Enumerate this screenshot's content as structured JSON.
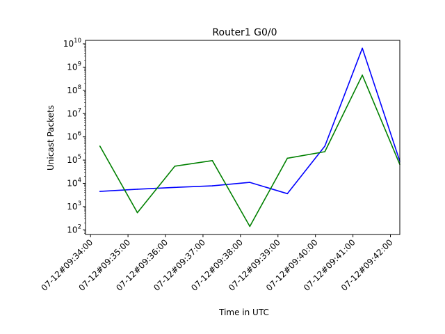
{
  "chart_data": {
    "type": "line",
    "title": "Router1 G0/0",
    "xlabel": "Time in UTC",
    "ylabel": "Unicast Packets",
    "yscale": "log",
    "ylim_exp": [
      1.8,
      10.15
    ],
    "y_ticks": [
      {
        "base": "10",
        "exp": "2",
        "value": 100
      },
      {
        "base": "10",
        "exp": "3",
        "value": 1000
      },
      {
        "base": "10",
        "exp": "4",
        "value": 10000
      },
      {
        "base": "10",
        "exp": "5",
        "value": 100000
      },
      {
        "base": "10",
        "exp": "6",
        "value": 1000000
      },
      {
        "base": "10",
        "exp": "7",
        "value": 10000000
      },
      {
        "base": "10",
        "exp": "8",
        "value": 100000000
      },
      {
        "base": "10",
        "exp": "9",
        "value": 1000000000
      },
      {
        "base": "10",
        "exp": "10",
        "value": 10000000000
      }
    ],
    "x_ticks": [
      "07-12#09:34:00",
      "07-12#09:35:00",
      "07-12#09:36:00",
      "07-12#09:37:00",
      "07-12#09:38:00",
      "07-12#09:39:00",
      "07-12#09:40:00",
      "07-12#09:41:00",
      "07-12#09:42:00"
    ],
    "xlim": [
      "07-12#09:33:52",
      "07-12#09:42:15"
    ],
    "grid": false,
    "legend": "none",
    "series": [
      {
        "color": "#0000ff",
        "points": [
          {
            "x": "07-12#09:34:15",
            "y": 4500
          },
          {
            "x": "07-12#09:35:15",
            "y": 5600
          },
          {
            "x": "07-12#09:36:15",
            "y": 6700
          },
          {
            "x": "07-12#09:37:15",
            "y": 7800
          },
          {
            "x": "07-12#09:38:15",
            "y": 11000
          },
          {
            "x": "07-12#09:39:15",
            "y": 3600
          },
          {
            "x": "07-12#09:40:15",
            "y": 400000
          },
          {
            "x": "07-12#09:41:15",
            "y": 6500000000
          },
          {
            "x": "07-12#09:42:15",
            "y": 90000
          }
        ]
      },
      {
        "color": "#008000",
        "points": [
          {
            "x": "07-12#09:34:15",
            "y": 400000
          },
          {
            "x": "07-12#09:35:15",
            "y": 550
          },
          {
            "x": "07-12#09:36:15",
            "y": 55000
          },
          {
            "x": "07-12#09:37:15",
            "y": 95000
          },
          {
            "x": "07-12#09:38:15",
            "y": 140
          },
          {
            "x": "07-12#09:39:15",
            "y": 120000
          },
          {
            "x": "07-12#09:40:15",
            "y": 230000
          },
          {
            "x": "07-12#09:41:15",
            "y": 450000000
          },
          {
            "x": "07-12#09:42:15",
            "y": 65000
          }
        ]
      }
    ]
  }
}
